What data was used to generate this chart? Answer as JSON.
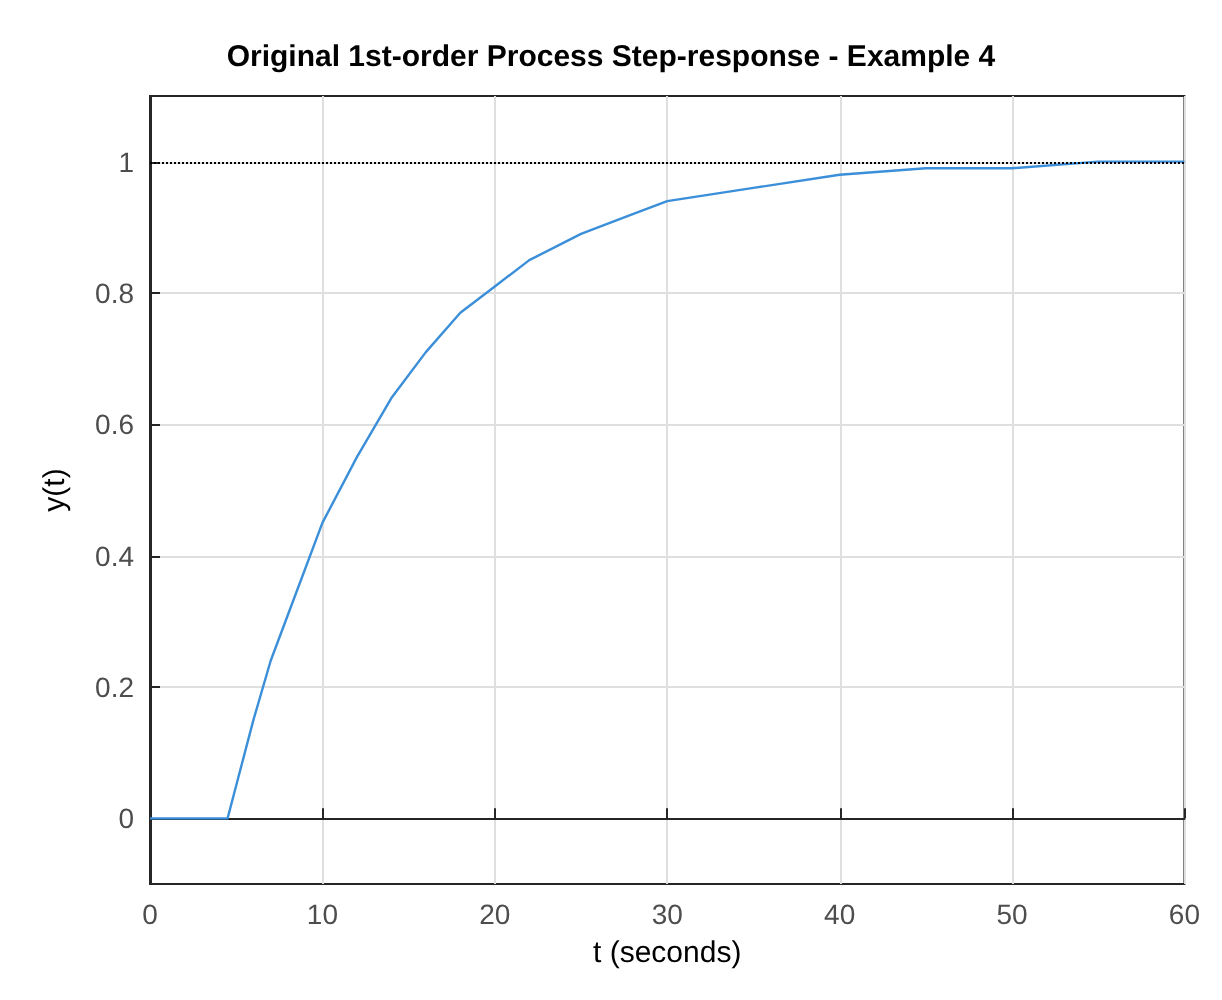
{
  "chart_data": {
    "type": "line",
    "title": "Original 1st-order Process Step-response - Example 4",
    "xlabel": "t (seconds)",
    "ylabel": "y(t)",
    "x": [
      0,
      4,
      4.5,
      5,
      6,
      7,
      8,
      10,
      12,
      14,
      16,
      18,
      20,
      22,
      25,
      28,
      30,
      35,
      40,
      45,
      50,
      55,
      60
    ],
    "series": [
      {
        "color": "#3b8fd9",
        "values": [
          0,
          0,
          0,
          0.05,
          0.15,
          0.24,
          0.31,
          0.45,
          0.55,
          0.64,
          0.71,
          0.77,
          0.81,
          0.85,
          0.89,
          0.92,
          0.94,
          0.96,
          0.98,
          0.99,
          0.99,
          1.0,
          1.0
        ]
      }
    ],
    "xlim": [
      0,
      60
    ],
    "xticks": [
      0,
      10,
      20,
      30,
      40,
      50,
      60
    ],
    "ylim": [
      -0.1,
      1.1
    ],
    "yticks": [
      0,
      0.2,
      0.4,
      0.6,
      0.8,
      1
    ],
    "grid": true,
    "marker": "none",
    "line_style": "solid",
    "ref_lines": [
      {
        "axis": "y",
        "value": 1,
        "color": "#000000",
        "line_style": "dotted"
      }
    ]
  }
}
